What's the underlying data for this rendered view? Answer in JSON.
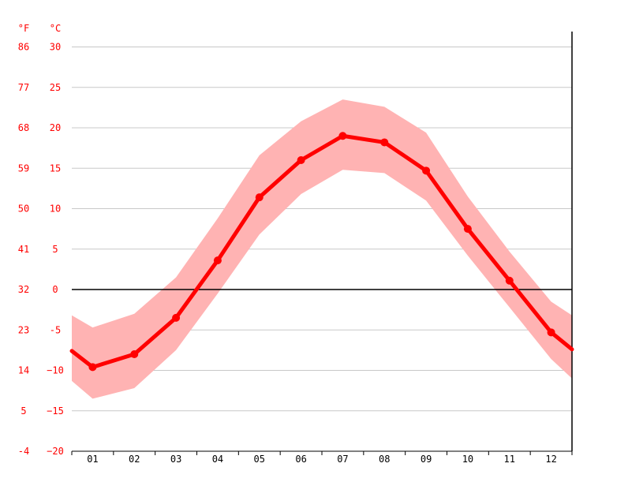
{
  "chart_data": {
    "type": "line",
    "title": "",
    "xlabel": "",
    "ylabel": "",
    "categories": [
      "01",
      "02",
      "03",
      "04",
      "05",
      "06",
      "07",
      "08",
      "09",
      "10",
      "11",
      "12"
    ],
    "y_unit_celsius": "°C",
    "y_unit_fahrenheit": "°F",
    "ylim": [
      -20,
      32
    ],
    "y_ticks_celsius": [
      {
        "value": 30,
        "label": "30"
      },
      {
        "value": 25,
        "label": "25"
      },
      {
        "value": 20,
        "label": "20"
      },
      {
        "value": 15,
        "label": "15"
      },
      {
        "value": 10,
        "label": "10"
      },
      {
        "value": 5,
        "label": "5"
      },
      {
        "value": 0,
        "label": "0"
      },
      {
        "value": -5,
        "label": "-5"
      },
      {
        "value": -10,
        "label": "−10"
      },
      {
        "value": -15,
        "label": "−15"
      },
      {
        "value": -20,
        "label": "−20"
      }
    ],
    "y_ticks_fahrenheit": [
      "86",
      "77",
      "68",
      "59",
      "50",
      "41",
      "32",
      "23",
      "14",
      "5",
      "-4"
    ],
    "series": [
      {
        "values": [
          -9.6,
          -8.0,
          -3.5,
          3.6,
          11.4,
          16.0,
          19.0,
          18.2,
          14.7,
          7.5,
          1.1,
          -5.3
        ]
      }
    ],
    "band_high": [
      -4.7,
      -3.0,
      1.5,
      8.8,
      16.6,
      20.8,
      23.5,
      22.6,
      19.4,
      11.5,
      4.7,
      -1.5
    ],
    "band_low": [
      -13.5,
      -12.2,
      -7.5,
      -0.5,
      6.8,
      11.8,
      14.8,
      14.4,
      11.0,
      4.2,
      -2.2,
      -8.6
    ],
    "band_left_edge": {
      "high": -3.2,
      "low": -11.3,
      "mid": -7.6
    },
    "band_right_edge": {
      "high": -3.2,
      "low": -11.0,
      "mid": -7.4
    },
    "grid": true,
    "zero_line": true,
    "legend": "none",
    "colors": {
      "line": "#ff0000",
      "band": "#ffb3b3",
      "grid": "#c8c8c8",
      "axis": "#000000",
      "y_labels": "#ff0000",
      "x_labels": "#000000"
    }
  }
}
